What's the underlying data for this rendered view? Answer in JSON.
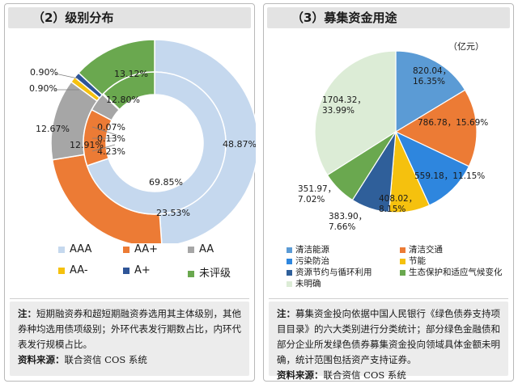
{
  "left_panel": {
    "title": "（2）级别分布",
    "note_label": "注：",
    "note_text": "短期融资券和超短期融资券选用其主体级别，其他券种均选用债项级别；外环代表发行期数占比，内环代表发行规模占比。",
    "source_label": "资料来源：",
    "source_text": "联合资信 COS 系统"
  },
  "right_panel": {
    "title": "（3）募集资金用途",
    "unit": "（亿元）",
    "note_label": "注：",
    "note_text": "募集资金投向依据中国人民银行《绿色债券支持项目目录》的六大类别进行分类统计；部分绿色金融债和部分企业所发绿色债券募集资金投向领域具体金额未明确，统计范围包括资产支持证券。",
    "source_label": "资料来源：",
    "source_text": "联合资信 COS 系统"
  },
  "chart_data": [
    {
      "type": "donut",
      "title": "（2）级别分布",
      "categories": [
        "AAA",
        "AA+",
        "AA",
        "AA-",
        "A+",
        "未评级"
      ],
      "colors": [
        "#c5d8ee",
        "#ec7b35",
        "#a6a6a6",
        "#f5c10e",
        "#2f5597",
        "#6aa84f"
      ],
      "series": [
        {
          "name": "外环",
          "values": [
            48.87,
            23.53,
            12.67,
            0.9,
            0.9,
            13.12
          ],
          "labels": [
            "48.87%",
            "23.53%",
            "12.67%",
            "0.90%",
            "0.90%",
            "13.12%"
          ]
        },
        {
          "name": "内环",
          "values": [
            69.85,
            12.91,
            4.23,
            0.13,
            0.07,
            12.8
          ],
          "labels": [
            "69.85%",
            "12.91%",
            "4.23%",
            "0.13%",
            "0.07%",
            "12.80%"
          ]
        }
      ],
      "legend_position": "bottom"
    },
    {
      "type": "pie",
      "title": "（3）募集资金用途",
      "categories": [
        "清洁能源",
        "清洁交通",
        "污染防治",
        "节能",
        "资源节约与循环利用",
        "生态保护和适应气候变化",
        "未明确"
      ],
      "values": [
        820.04,
        786.78,
        559.18,
        408.02,
        383.9,
        351.97,
        1704.32
      ],
      "labels": [
        "820.04，16.35%",
        "786.78，15.69%",
        "559.18，11.15%",
        "408.02，8.15%",
        "383.90，7.66%",
        "351.97，7.02%",
        "1704.32，33.99%"
      ],
      "colors": [
        "#5b9bd5",
        "#ec7b35",
        "#2e86de",
        "#f5c10e",
        "#2f5f9a",
        "#6aa84f",
        "#dcecd6"
      ],
      "legend_position": "bottom"
    }
  ]
}
